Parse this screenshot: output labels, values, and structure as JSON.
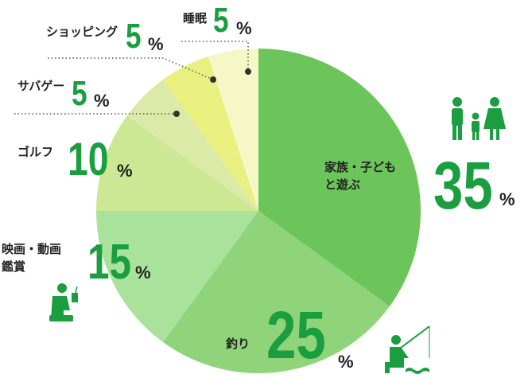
{
  "chart_data": {
    "type": "pie",
    "categories": [
      "家族・子ども\nと遊ぶ",
      "釣り",
      "映画・動画\n鑑賞",
      "ゴルフ",
      "サバゲー",
      "ショッピング",
      "睡眠"
    ],
    "values": [
      35,
      25,
      15,
      10,
      5,
      5,
      5
    ],
    "unit": "%",
    "colors": [
      "#6cc55a",
      "#8fd47a",
      "#a9e29b",
      "#cce895",
      "#dceaa8",
      "#e9f07f",
      "#f5f7c4"
    ]
  }
}
